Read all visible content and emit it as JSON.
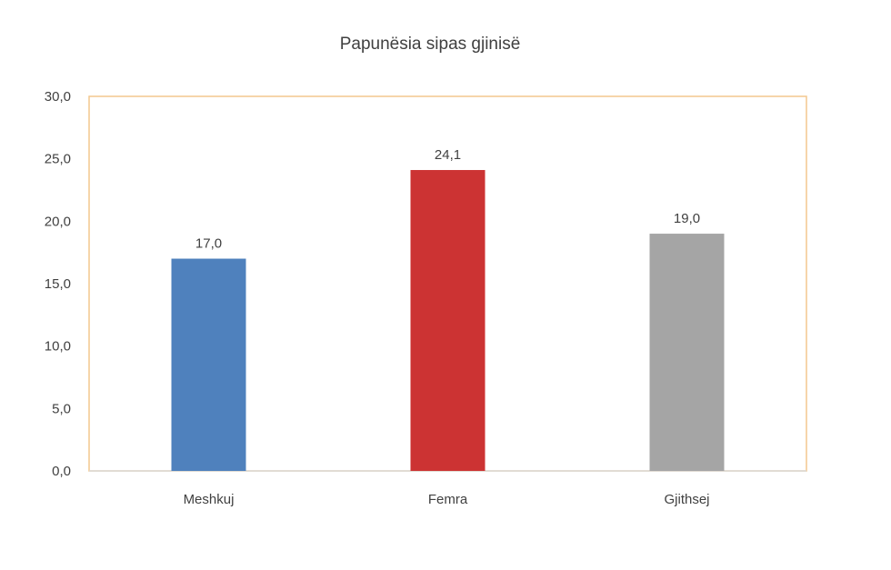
{
  "chart_data": {
    "type": "bar",
    "title": "Papunësia sipas gjinisë",
    "categories": [
      "Meshkuj",
      "Femra",
      "Gjithsej"
    ],
    "values": [
      17.0,
      24.1,
      19.0
    ],
    "value_labels": [
      "17,0",
      "24,1",
      "19,0"
    ],
    "colors": [
      "#4f81bd",
      "#cc3333",
      "#a5a5a5"
    ],
    "ylim": [
      0,
      30
    ],
    "yticks": [
      0,
      5,
      10,
      15,
      20,
      25,
      30
    ],
    "ytick_labels": [
      "0,0",
      "5,0",
      "10,0",
      "15,0",
      "20,0",
      "25,0",
      "30,0"
    ],
    "xlabel": "",
    "ylabel": "",
    "grid": false,
    "legend": "none",
    "plot_border_color": "#f4c78e",
    "axis_color": "#d9d9d9"
  }
}
